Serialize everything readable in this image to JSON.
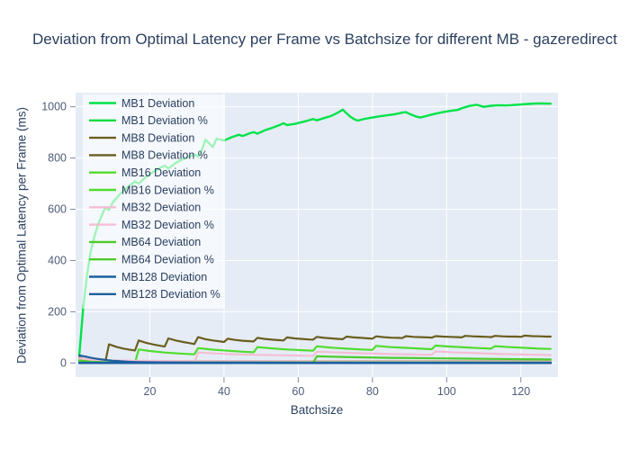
{
  "chart_data": {
    "type": "line",
    "title": "Deviation from Optimal Latency per Frame vs Batchsize for different MB - gazeredirect",
    "xlabel": "Batchsize",
    "ylabel": "Deviation from Optimal Latency per Frame (ms)",
    "xlim": [
      0,
      130
    ],
    "ylim": [
      -55,
      1055
    ],
    "x_ticks": [
      20,
      40,
      60,
      80,
      100,
      120
    ],
    "y_ticks": [
      0,
      200,
      400,
      600,
      800,
      1000
    ],
    "grid": true,
    "legend_position": "inside-top-left",
    "colors": {
      "plot_bg": "#e5ecf6",
      "grid": "#ffffff",
      "title_text": "#2a3f5f",
      "tick_text": "#4e5c78",
      "legend_text": "#2a3f5f",
      "legend_bg": "rgba(255,255,255,0.62)"
    },
    "series": [
      {
        "name": "MB1 Deviation",
        "color": "#00e349",
        "width": 2.4,
        "points": [
          [
            1,
            30
          ],
          [
            2,
            205
          ],
          [
            3,
            335
          ],
          [
            4,
            430
          ],
          [
            5,
            490
          ],
          [
            6,
            538
          ],
          [
            7,
            574
          ],
          [
            8,
            608
          ],
          [
            9,
            597
          ],
          [
            10,
            626
          ],
          [
            12,
            660
          ],
          [
            14,
            686
          ],
          [
            16,
            709
          ],
          [
            17,
            699
          ],
          [
            19,
            727
          ],
          [
            21,
            747
          ],
          [
            23,
            763
          ],
          [
            24,
            770
          ],
          [
            25,
            759
          ],
          [
            27,
            781
          ],
          [
            29,
            796
          ],
          [
            31,
            808
          ],
          [
            32,
            814
          ],
          [
            33,
            806
          ],
          [
            34,
            830
          ],
          [
            35,
            872
          ],
          [
            36,
            857
          ],
          [
            37,
            843
          ],
          [
            38,
            876
          ],
          [
            40,
            868
          ],
          [
            42,
            881
          ],
          [
            44,
            891
          ],
          [
            45,
            886
          ],
          [
            47,
            897
          ],
          [
            48,
            901
          ],
          [
            49,
            895
          ],
          [
            51,
            908
          ],
          [
            53,
            918
          ],
          [
            55,
            929
          ],
          [
            56,
            936
          ],
          [
            57,
            929
          ],
          [
            59,
            933
          ],
          [
            61,
            940
          ],
          [
            63,
            948
          ],
          [
            64,
            952
          ],
          [
            65,
            947
          ],
          [
            67,
            956
          ],
          [
            69,
            965
          ],
          [
            70,
            972
          ],
          [
            71,
            980
          ],
          [
            72,
            989
          ],
          [
            73,
            975
          ],
          [
            74,
            962
          ],
          [
            75,
            952
          ],
          [
            76,
            946
          ],
          [
            78,
            953
          ],
          [
            80,
            958
          ],
          [
            82,
            963
          ],
          [
            84,
            967
          ],
          [
            86,
            971
          ],
          [
            88,
            977
          ],
          [
            89,
            979
          ],
          [
            90,
            972
          ],
          [
            92,
            961
          ],
          [
            93,
            958
          ],
          [
            95,
            966
          ],
          [
            97,
            973
          ],
          [
            99,
            979
          ],
          [
            101,
            984
          ],
          [
            103,
            988
          ],
          [
            104,
            994
          ],
          [
            106,
            1003
          ],
          [
            108,
            1008
          ],
          [
            110,
            1000
          ],
          [
            112,
            1004
          ],
          [
            114,
            1006
          ],
          [
            116,
            1005
          ],
          [
            118,
            1007
          ],
          [
            120,
            1009
          ],
          [
            122,
            1011
          ],
          [
            124,
            1013
          ],
          [
            126,
            1013
          ],
          [
            128,
            1012
          ]
        ]
      },
      {
        "name": "MB1 Deviation %",
        "color": "#0bdb3e",
        "width": 2,
        "points": [
          [
            1,
            1.5
          ],
          [
            16,
            2
          ],
          [
            32,
            2
          ],
          [
            64,
            2
          ],
          [
            128,
            2
          ]
        ]
      },
      {
        "name": "MB8 Deviation",
        "color": "#6b5e1f",
        "width": 2.2,
        "points": [
          [
            1,
            22
          ],
          [
            3,
            12
          ],
          [
            5,
            7
          ],
          [
            8,
            4
          ],
          [
            9,
            73
          ],
          [
            11,
            63
          ],
          [
            13,
            56
          ],
          [
            15,
            51
          ],
          [
            16,
            49
          ],
          [
            17,
            88
          ],
          [
            19,
            79
          ],
          [
            21,
            72
          ],
          [
            23,
            67
          ],
          [
            24,
            64
          ],
          [
            25,
            96
          ],
          [
            27,
            88
          ],
          [
            29,
            82
          ],
          [
            31,
            77
          ],
          [
            32,
            74
          ],
          [
            33,
            101
          ],
          [
            35,
            93
          ],
          [
            37,
            88
          ],
          [
            39,
            84
          ],
          [
            40,
            82
          ],
          [
            41,
            95
          ],
          [
            43,
            90
          ],
          [
            45,
            87
          ],
          [
            47,
            85
          ],
          [
            48,
            84
          ],
          [
            49,
            98
          ],
          [
            51,
            94
          ],
          [
            53,
            91
          ],
          [
            55,
            89
          ],
          [
            56,
            88
          ],
          [
            57,
            100
          ],
          [
            59,
            96
          ],
          [
            61,
            94
          ],
          [
            63,
            92
          ],
          [
            64,
            91
          ],
          [
            65,
            102
          ],
          [
            67,
            98
          ],
          [
            69,
            96
          ],
          [
            71,
            94
          ],
          [
            72,
            93
          ],
          [
            73,
            103
          ],
          [
            75,
            100
          ],
          [
            77,
            98
          ],
          [
            79,
            96
          ],
          [
            80,
            95
          ],
          [
            81,
            104
          ],
          [
            83,
            101
          ],
          [
            85,
            99
          ],
          [
            87,
            98
          ],
          [
            88,
            97
          ],
          [
            89,
            105
          ],
          [
            91,
            102
          ],
          [
            93,
            101
          ],
          [
            95,
            100
          ],
          [
            96,
            99
          ],
          [
            97,
            105
          ],
          [
            99,
            103
          ],
          [
            101,
            102
          ],
          [
            103,
            101
          ],
          [
            104,
            100
          ],
          [
            105,
            106
          ],
          [
            107,
            104
          ],
          [
            109,
            103
          ],
          [
            111,
            102
          ],
          [
            112,
            101
          ],
          [
            113,
            106
          ],
          [
            115,
            104
          ],
          [
            117,
            103
          ],
          [
            119,
            103
          ],
          [
            120,
            102
          ],
          [
            121,
            107
          ],
          [
            123,
            105
          ],
          [
            125,
            104
          ],
          [
            127,
            103
          ],
          [
            128,
            103
          ]
        ]
      },
      {
        "name": "MB8 Deviation %",
        "color": "#6b5e1f",
        "width": 2,
        "points": [
          [
            1,
            6
          ],
          [
            9,
            7
          ],
          [
            33,
            7.5
          ],
          [
            64,
            7.5
          ],
          [
            128,
            7.5
          ]
        ]
      },
      {
        "name": "MB16 Deviation",
        "color": "#50dc2e",
        "width": 2.2,
        "points": [
          [
            1,
            16
          ],
          [
            4,
            8
          ],
          [
            8,
            4
          ],
          [
            12,
            2
          ],
          [
            16,
            1
          ],
          [
            17,
            53
          ],
          [
            20,
            47
          ],
          [
            24,
            41
          ],
          [
            28,
            37
          ],
          [
            32,
            34
          ],
          [
            33,
            58
          ],
          [
            37,
            52
          ],
          [
            41,
            48
          ],
          [
            45,
            44
          ],
          [
            48,
            42
          ],
          [
            49,
            62
          ],
          [
            53,
            57
          ],
          [
            57,
            53
          ],
          [
            61,
            50
          ],
          [
            64,
            48
          ],
          [
            65,
            65
          ],
          [
            69,
            60
          ],
          [
            73,
            56
          ],
          [
            77,
            53
          ],
          [
            80,
            51
          ],
          [
            81,
            67
          ],
          [
            85,
            62
          ],
          [
            89,
            59
          ],
          [
            93,
            56
          ],
          [
            96,
            54
          ],
          [
            97,
            68
          ],
          [
            101,
            64
          ],
          [
            105,
            61
          ],
          [
            109,
            58
          ],
          [
            112,
            56
          ],
          [
            113,
            66
          ],
          [
            117,
            62
          ],
          [
            121,
            59
          ],
          [
            125,
            56
          ],
          [
            128,
            55
          ]
        ]
      },
      {
        "name": "MB16 Deviation %",
        "color": "#50dc2e",
        "width": 2,
        "points": [
          [
            1,
            4.5
          ],
          [
            17,
            5
          ],
          [
            64,
            5
          ],
          [
            128,
            5
          ]
        ]
      },
      {
        "name": "MB32 Deviation",
        "color": "#f5bed3",
        "width": 2.2,
        "points": [
          [
            1,
            13
          ],
          [
            4,
            7
          ],
          [
            8,
            4
          ],
          [
            16,
            2
          ],
          [
            32,
            1
          ],
          [
            33,
            41
          ],
          [
            38,
            37
          ],
          [
            43,
            34
          ],
          [
            48,
            32
          ],
          [
            56,
            30
          ],
          [
            64,
            28
          ],
          [
            65,
            44
          ],
          [
            71,
            41
          ],
          [
            77,
            38
          ],
          [
            83,
            36
          ],
          [
            89,
            34
          ],
          [
            96,
            32
          ],
          [
            97,
            45
          ],
          [
            103,
            41
          ],
          [
            109,
            38
          ],
          [
            115,
            35
          ],
          [
            121,
            33
          ],
          [
            128,
            31
          ]
        ]
      },
      {
        "name": "MB32 Deviation %",
        "color": "#f5bed3",
        "width": 2,
        "points": [
          [
            1,
            19
          ],
          [
            4,
            14
          ],
          [
            8,
            11
          ],
          [
            16,
            9
          ],
          [
            32,
            8
          ],
          [
            64,
            7
          ],
          [
            96,
            6.5
          ],
          [
            128,
            6
          ]
        ]
      },
      {
        "name": "MB64 Deviation",
        "color": "#4ecb2d",
        "width": 2.2,
        "points": [
          [
            1,
            10
          ],
          [
            4,
            5
          ],
          [
            8,
            3
          ],
          [
            16,
            2
          ],
          [
            32,
            1
          ],
          [
            64,
            0.5
          ],
          [
            65,
            26
          ],
          [
            71,
            24
          ],
          [
            78,
            22
          ],
          [
            85,
            20
          ],
          [
            92,
            19
          ],
          [
            99,
            18
          ],
          [
            106,
            17
          ],
          [
            113,
            16
          ],
          [
            120,
            15
          ],
          [
            128,
            14
          ]
        ]
      },
      {
        "name": "MB64 Deviation %",
        "color": "#4ecb2d",
        "width": 2,
        "points": [
          [
            1,
            3
          ],
          [
            32,
            3
          ],
          [
            64,
            3
          ],
          [
            128,
            2.5
          ]
        ]
      },
      {
        "name": "MB128 Deviation",
        "color": "#1d5f9e",
        "width": 2.2,
        "points": [
          [
            1,
            30
          ],
          [
            2,
            27
          ],
          [
            3,
            24
          ],
          [
            4,
            21
          ],
          [
            5,
            18
          ],
          [
            6,
            16
          ],
          [
            7,
            14
          ],
          [
            8,
            12
          ],
          [
            10,
            9
          ],
          [
            12,
            7
          ],
          [
            14,
            5
          ],
          [
            16,
            4
          ],
          [
            20,
            3
          ],
          [
            24,
            2.5
          ],
          [
            32,
            2
          ],
          [
            48,
            1.5
          ],
          [
            64,
            1
          ],
          [
            96,
            0.8
          ],
          [
            128,
            0.6
          ]
        ]
      },
      {
        "name": "MB128 Deviation %",
        "color": "#1d5f9e",
        "width": 2.6,
        "points": [
          [
            1,
            0.5
          ],
          [
            32,
            0.5
          ],
          [
            64,
            0.5
          ],
          [
            128,
            0.5
          ]
        ]
      }
    ]
  }
}
